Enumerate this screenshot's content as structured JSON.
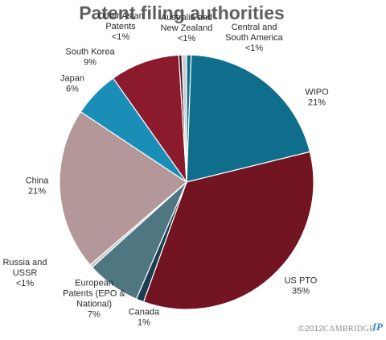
{
  "chart_data": {
    "type": "pie",
    "title": "Patent filing authorities",
    "slices": [
      {
        "label": "Central and South America",
        "display": "Central and\nSouth America\n<1%",
        "value": 0.6,
        "color": "#0e6e8c"
      },
      {
        "label": "WIPO",
        "display": "WIPO\n21%",
        "value": 21,
        "color": "#0e6e8c"
      },
      {
        "label": "US PTO",
        "display": "US PTO\n35%",
        "value": 35,
        "color": "#731423"
      },
      {
        "label": "Canada",
        "display": "Canada\n1%",
        "value": 1,
        "color": "#1b3f52"
      },
      {
        "label": "European Patents (EPO & National)",
        "display": "European\nPatents (EPO &\nNational)\n7%",
        "value": 7,
        "color": "#4f7782"
      },
      {
        "label": "Russia and USSR",
        "display": "Russia and\nUSSR\n<1%",
        "value": 0.4,
        "color": "#c5c5c5"
      },
      {
        "label": "China",
        "display": "China\n21%",
        "value": 21,
        "color": "#b39799"
      },
      {
        "label": "Japan",
        "display": "Japan\n6%",
        "value": 6,
        "color": "#1a8eb6"
      },
      {
        "label": "South Korea",
        "display": "South Korea\n9%",
        "value": 9,
        "color": "#8a1a2c"
      },
      {
        "label": "Other Asian Patents",
        "display": "Other Asian\nPatents\n<1%",
        "value": 0.4,
        "color": "#4a1320"
      },
      {
        "label": "Australia and New Zealand",
        "display": "Australia and\nNew Zealand\n<1%",
        "value": 0.6,
        "color": "#c9cdd2"
      }
    ]
  },
  "footer": {
    "copyright": "©2012",
    "brand": "CAMBRIDGE",
    "brand_mark": "IP"
  }
}
